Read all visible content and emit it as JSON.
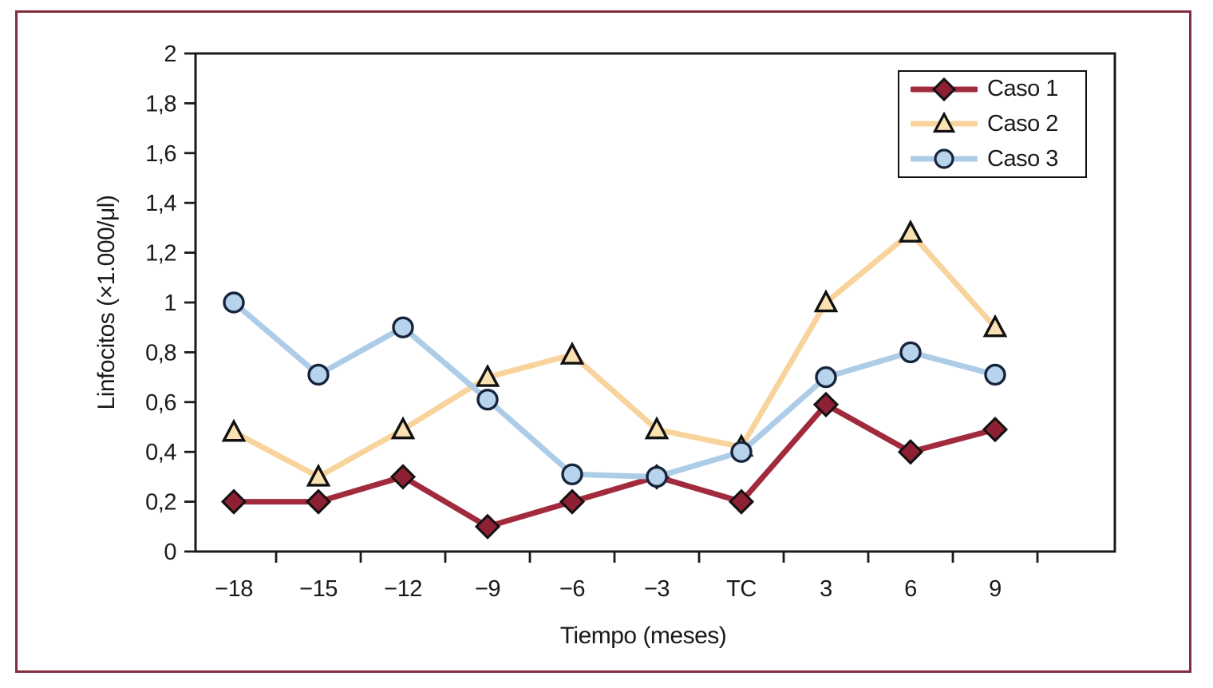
{
  "figure": {
    "border_color": "#822d40",
    "background_color": "#ffffff",
    "axis_color": "#1a1a1a"
  },
  "chart_data": {
    "type": "line",
    "title": "",
    "xlabel": "Tiempo (meses)",
    "ylabel": "Linfocitos (×1.000/μl)",
    "categories": [
      "−18",
      "−15",
      "−12",
      "−9",
      "−6",
      "−3",
      "TC",
      "3",
      "6",
      "9"
    ],
    "ylim": [
      0,
      2
    ],
    "y_ticks": [
      "0",
      "0,2",
      "0,4",
      "0,6",
      "0,8",
      "1",
      "1,2",
      "1,4",
      "1,6",
      "1,8",
      "2"
    ],
    "grid": false,
    "legend_position": "top-right",
    "series": [
      {
        "name": "Caso 1",
        "marker": "diamond",
        "line_color": "#a22a3d",
        "marker_fill": "#8e2033",
        "marker_stroke": "#111111",
        "values": [
          0.2,
          0.2,
          0.3,
          0.1,
          0.2,
          0.3,
          0.2,
          0.59,
          0.4,
          0.49
        ]
      },
      {
        "name": "Caso 2",
        "marker": "triangle",
        "line_color": "#f8d49c",
        "marker_fill": "#fae1b1",
        "marker_stroke": "#111111",
        "values": [
          0.48,
          0.3,
          0.49,
          0.7,
          0.79,
          0.49,
          0.42,
          1.0,
          1.28,
          0.9
        ]
      },
      {
        "name": "Caso 3",
        "marker": "circle",
        "line_color": "#adcce8",
        "marker_fill": "#b8d4ec",
        "marker_stroke": "#17253c",
        "values": [
          1.0,
          0.71,
          0.9,
          0.61,
          0.31,
          0.3,
          0.4,
          0.7,
          0.8,
          0.71
        ]
      }
    ]
  }
}
